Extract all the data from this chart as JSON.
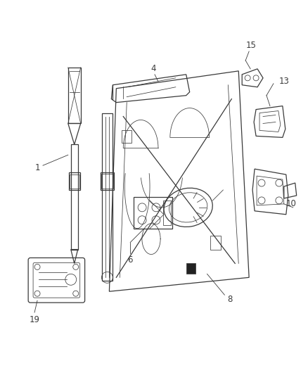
{
  "bg_color": "#ffffff",
  "line_color": "#3a3a3a",
  "fig_width": 4.38,
  "fig_height": 5.33,
  "dpi": 100,
  "label_fontsize": 8.5,
  "lw_main": 0.9,
  "lw_thin": 0.55,
  "lw_thick": 1.1
}
